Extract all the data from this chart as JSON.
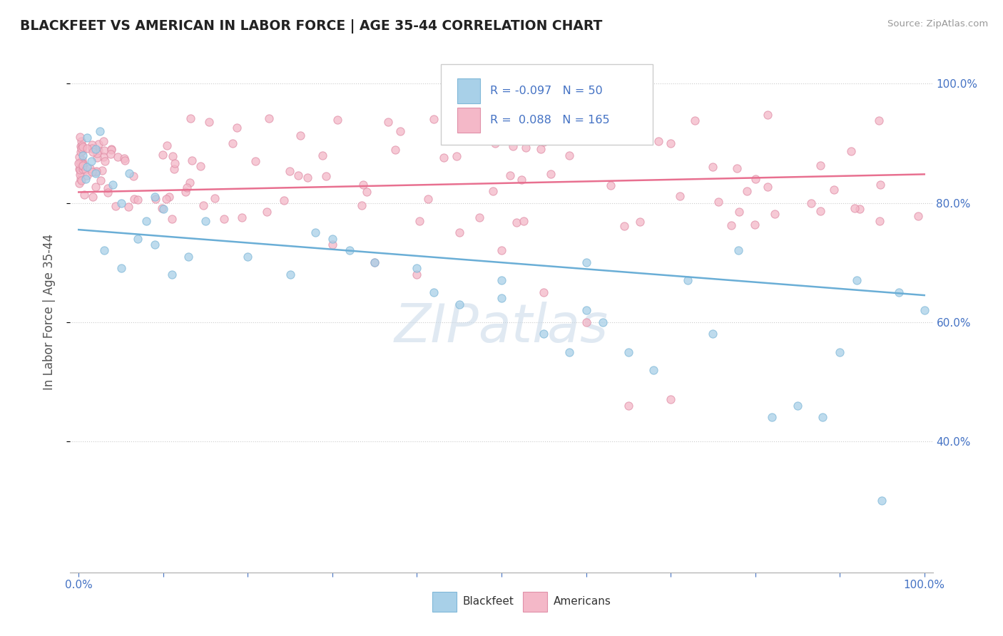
{
  "title": "BLACKFEET VS AMERICAN IN LABOR FORCE | AGE 35-44 CORRELATION CHART",
  "source": "Source: ZipAtlas.com",
  "ylabel": "In Labor Force | Age 35-44",
  "blackfeet_R": -0.097,
  "blackfeet_N": 50,
  "american_R": 0.088,
  "american_N": 165,
  "blue_color": "#a8d0e8",
  "pink_color": "#f4b8c8",
  "blue_line_color": "#6aaed6",
  "pink_line_color": "#e87090",
  "watermark": "ZIPatlas",
  "bf_trend_start": 0.755,
  "bf_trend_end": 0.645,
  "am_trend_start": 0.818,
  "am_trend_end": 0.848,
  "xlim_lo": -0.01,
  "xlim_hi": 1.01,
  "ylim_lo": 0.18,
  "ylim_hi": 1.055,
  "yticks": [
    0.4,
    0.6,
    0.8,
    1.0
  ],
  "ytick_labels": [
    "40.0%",
    "60.0%",
    "80.0%",
    "100.0%"
  ],
  "xtick_labels_show": [
    "0.0%",
    "100.0%"
  ],
  "xtick_show_vals": [
    0.0,
    1.0
  ]
}
